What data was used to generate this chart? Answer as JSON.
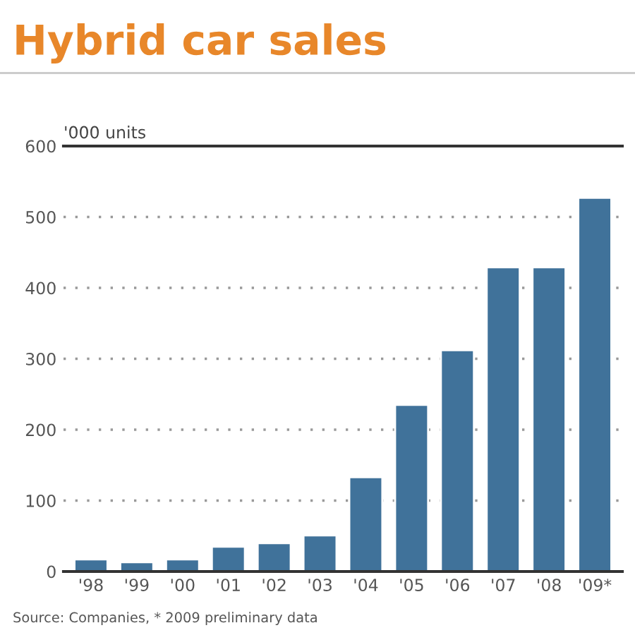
{
  "chart_data": {
    "type": "bar",
    "title": "Hybrid car sales",
    "ylabel": "'000 units",
    "categories": [
      "'98",
      "'99",
      "'00",
      "'01",
      "'02",
      "'03",
      "'04",
      "'05",
      "'06",
      "'07",
      "'08",
      "'09*"
    ],
    "values": [
      17,
      13,
      17,
      35,
      40,
      51,
      133,
      235,
      312,
      429,
      429,
      527
    ],
    "color": "#40729a",
    "ylim": [
      0,
      600
    ],
    "yticks": [
      0,
      100,
      200,
      300,
      400,
      500,
      600
    ],
    "grid": "y",
    "annotations": [
      "Source: Companies, * 2009 preliminary data"
    ]
  }
}
